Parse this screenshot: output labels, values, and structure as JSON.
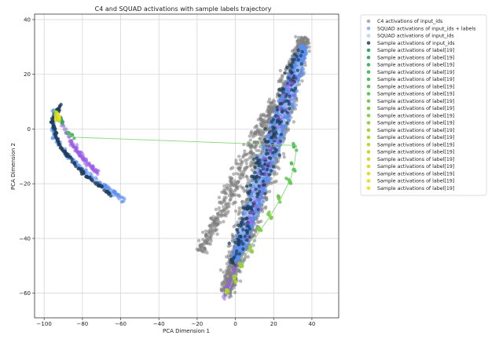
{
  "chart_data": {
    "type": "scatter",
    "title": "C4 and SQUAD activations with sample labels trajectory",
    "xlabel": "PCA Dimension 1",
    "ylabel": "PCA Dimension 2",
    "xlim": [
      -105,
      54
    ],
    "ylim": [
      -69,
      42
    ],
    "xticks": [
      -100,
      -80,
      -60,
      -40,
      -20,
      0,
      20,
      40
    ],
    "yticks": [
      -60,
      -40,
      -20,
      0,
      20,
      40
    ],
    "grid": true,
    "legend_position": "outside-right",
    "series": [
      {
        "name": "C4 activations of input_ids",
        "color": "#808080",
        "opacity": 0.55,
        "clusters": [
          {
            "shape": "band",
            "from": [
              -5,
              -60
            ],
            "to": [
              36,
              33
            ],
            "halfwidth": 9,
            "count": 1800,
            "seed": 11
          },
          {
            "shape": "band",
            "from": [
              -18,
              -45
            ],
            "to": [
              20,
              10
            ],
            "halfwidth": 6,
            "count": 400,
            "seed": 12
          }
        ]
      },
      {
        "name": "SQUAD activations of input_ids + labels",
        "color": "#5b8ff0",
        "opacity": 0.55,
        "clusters": [
          {
            "shape": "band",
            "from": [
              0,
              -48
            ],
            "to": [
              36,
              30
            ],
            "halfwidth": 6,
            "count": 1600,
            "seed": 21
          },
          {
            "shape": "curve",
            "points": [
              [
                -95,
                7
              ],
              [
                -95,
                -3
              ],
              [
                -85,
                -12
              ],
              [
                -70,
                -20
              ],
              [
                -58,
                -26
              ]
            ],
            "halfwidth": 1.5,
            "count": 160,
            "seed": 22
          }
        ]
      },
      {
        "name": "SQUAD activations of input_ids",
        "color": "#a5c3f2",
        "opacity": 0.6,
        "clusters": [
          {
            "shape": "band",
            "from": [
              2,
              -40
            ],
            "to": [
              34,
              24
            ],
            "halfwidth": 4,
            "count": 250,
            "seed": 31
          }
        ]
      },
      {
        "name": "Sample activations of input_ids",
        "color": "#1f3f5f",
        "opacity": 0.75,
        "clusters": [
          {
            "shape": "band",
            "from": [
              -2,
              -50
            ],
            "to": [
              34,
              28
            ],
            "halfwidth": 7,
            "count": 230,
            "seed": 41
          },
          {
            "shape": "curve",
            "points": [
              [
                -91,
                9
              ],
              [
                -96,
                3
              ],
              [
                -92,
                -6
              ],
              [
                -80,
                -16
              ],
              [
                -65,
                -24
              ]
            ],
            "halfwidth": 0.9,
            "count": 130,
            "seed": 42
          }
        ]
      },
      {
        "name": "Sample activations of label[19]",
        "color": "#2e9c6a",
        "opacity": 0.85,
        "clusters": [
          {
            "shape": "curve",
            "points": [
              [
                -93,
                6
              ],
              [
                -94,
                4
              ]
            ],
            "halfwidth": 0.6,
            "count": 6,
            "seed": 51
          }
        ]
      },
      {
        "name": "Sample activations of label[19]",
        "color": "#35a866",
        "opacity": 0.85,
        "clusters": [
          {
            "shape": "curve",
            "points": [
              [
                -92,
                5
              ],
              [
                -90,
                2
              ]
            ],
            "halfwidth": 0.6,
            "count": 6,
            "seed": 52
          }
        ]
      },
      {
        "name": "Sample activations of label[19]",
        "color": "#3cb062",
        "opacity": 0.85,
        "clusters": [
          {
            "shape": "curve",
            "points": [
              [
                -88,
                -1
              ],
              [
                -86,
                -2
              ]
            ],
            "halfwidth": 0.6,
            "count": 5,
            "seed": 53
          }
        ]
      },
      {
        "name": "Sample activations of label[19]",
        "color": "#44b65e",
        "opacity": 0.85,
        "clusters": [
          {
            "shape": "curve",
            "points": [
              [
                -86,
                -2
              ],
              [
                -84,
                -3
              ]
            ],
            "halfwidth": 0.6,
            "count": 5,
            "seed": 54
          }
        ]
      },
      {
        "name": "Sample activations of label[19]",
        "color": "#4dbb5a",
        "opacity": 0.85,
        "clusters": [
          {
            "shape": "curve",
            "points": [
              [
                30,
                -5
              ],
              [
                32,
                -8
              ]
            ],
            "halfwidth": 0.8,
            "count": 6,
            "seed": 55
          }
        ]
      },
      {
        "name": "Sample activations of label[19]",
        "color": "#56bf56",
        "opacity": 0.85,
        "clusters": [
          {
            "shape": "curve",
            "points": [
              [
                29,
                -12
              ],
              [
                31,
                -15
              ]
            ],
            "halfwidth": 0.8,
            "count": 6,
            "seed": 56
          }
        ]
      },
      {
        "name": "Sample activations of label[19]",
        "color": "#60c350",
        "opacity": 0.85,
        "clusters": [
          {
            "shape": "curve",
            "points": [
              [
                27,
                -18
              ],
              [
                29,
                -20
              ]
            ],
            "halfwidth": 0.8,
            "count": 5,
            "seed": 57
          }
        ]
      },
      {
        "name": "Sample activations of label[19]",
        "color": "#6bc74a",
        "opacity": 0.85,
        "clusters": [
          {
            "shape": "curve",
            "points": [
              [
                22,
                -24
              ],
              [
                24,
                -27
              ]
            ],
            "halfwidth": 0.8,
            "count": 5,
            "seed": 58
          }
        ]
      },
      {
        "name": "Sample activations of label[19]",
        "color": "#77ca44",
        "opacity": 0.85,
        "clusters": [
          {
            "shape": "curve",
            "points": [
              [
                17,
                -30
              ],
              [
                19,
                -33
              ]
            ],
            "halfwidth": 0.8,
            "count": 5,
            "seed": 59
          }
        ]
      },
      {
        "name": "Sample activations of label[19]",
        "color": "#83cd3d",
        "opacity": 0.85,
        "clusters": [
          {
            "shape": "curve",
            "points": [
              [
                12,
                -36
              ],
              [
                14,
                -38
              ]
            ],
            "halfwidth": 0.8,
            "count": 5,
            "seed": 60
          }
        ]
      },
      {
        "name": "Sample activations of label[19]",
        "color": "#90d036",
        "opacity": 0.85,
        "clusters": [
          {
            "shape": "curve",
            "points": [
              [
                7,
                -42
              ],
              [
                9,
                -45
              ]
            ],
            "halfwidth": 0.8,
            "count": 5,
            "seed": 61
          }
        ]
      },
      {
        "name": "Sample activations of label[19]",
        "color": "#9dd230",
        "opacity": 0.85,
        "clusters": [
          {
            "shape": "curve",
            "points": [
              [
                2,
                -49
              ],
              [
                4,
                -51
              ]
            ],
            "halfwidth": 0.8,
            "count": 5,
            "seed": 62
          }
        ]
      },
      {
        "name": "Sample activations of label[19]",
        "color": "#a9d42a",
        "opacity": 0.85,
        "clusters": [
          {
            "shape": "curve",
            "points": [
              [
                -1,
                -53
              ],
              [
                0,
                -56
              ]
            ],
            "halfwidth": 0.8,
            "count": 5,
            "seed": 63
          }
        ]
      },
      {
        "name": "Sample activations of label[19]",
        "color": "#b5d626",
        "opacity": 0.85,
        "clusters": [
          {
            "shape": "curve",
            "points": [
              [
                -4,
                -58
              ],
              [
                -5,
                -61
              ]
            ],
            "halfwidth": 0.8,
            "count": 5,
            "seed": 64
          }
        ]
      },
      {
        "name": "Sample activations of label[19]",
        "color": "#c1d822",
        "opacity": 0.85,
        "clusters": [
          {
            "shape": "curve",
            "points": [
              [
                -94,
                6
              ],
              [
                -93,
                4
              ]
            ],
            "halfwidth": 0.6,
            "count": 5,
            "seed": 65
          }
        ]
      },
      {
        "name": "Sample activations of label[19]",
        "color": "#ccda20",
        "opacity": 0.85,
        "clusters": [
          {
            "shape": "curve",
            "points": [
              [
                -93,
                5
              ],
              [
                -92,
                3
              ]
            ],
            "halfwidth": 0.6,
            "count": 5,
            "seed": 66
          }
        ]
      },
      {
        "name": "Sample activations of label[19]",
        "color": "#d6db1e",
        "opacity": 0.85,
        "clusters": [
          {
            "shape": "curve",
            "points": [
              [
                -94,
                5
              ],
              [
                -93,
                3
              ]
            ],
            "halfwidth": 0.6,
            "count": 5,
            "seed": 67
          }
        ]
      },
      {
        "name": "Sample activations of label[19]",
        "color": "#e0dc1c",
        "opacity": 0.85,
        "clusters": [
          {
            "shape": "curve",
            "points": [
              [
                -93,
                6
              ],
              [
                -92,
                4
              ]
            ],
            "halfwidth": 0.6,
            "count": 5,
            "seed": 68
          }
        ]
      },
      {
        "name": "Sample activations of label[19]",
        "color": "#e9dc1c",
        "opacity": 0.85,
        "clusters": [
          {
            "shape": "curve",
            "points": [
              [
                -94,
                4
              ],
              [
                -93,
                3
              ]
            ],
            "halfwidth": 0.6,
            "count": 5,
            "seed": 69
          }
        ]
      },
      {
        "name": "Sample activations of label[19]",
        "color": "#f2dc1e",
        "opacity": 0.85,
        "clusters": [
          {
            "shape": "curve",
            "points": [
              [
                -93,
                5
              ],
              [
                -92,
                4
              ]
            ],
            "halfwidth": 0.6,
            "count": 5,
            "seed": 70
          }
        ]
      }
    ],
    "extra_clusters": [
      {
        "color": "#9b5de5",
        "opacity": 0.55,
        "shape": "curve",
        "points": [
          [
            -92,
            4
          ],
          [
            -85,
            -6
          ],
          [
            -78,
            -12
          ],
          [
            -72,
            -16
          ]
        ],
        "halfwidth": 1.6,
        "count": 110,
        "seed": 81
      },
      {
        "color": "#9b5de5",
        "opacity": 0.55,
        "shape": "band",
        "from": [
          -6,
          -62
        ],
        "to": [
          2,
          -48
        ],
        "halfwidth": 2,
        "count": 35,
        "seed": 82
      },
      {
        "color": "#9b5de5",
        "opacity": 0.5,
        "shape": "band",
        "from": [
          5,
          -40
        ],
        "to": [
          30,
          20
        ],
        "halfwidth": 6,
        "count": 60,
        "seed": 83
      }
    ],
    "trajectory": {
      "color": "#7ad36a",
      "points": [
        [
          -95,
          7
        ],
        [
          -94,
          5
        ],
        [
          -93,
          3
        ],
        [
          -90,
          1
        ],
        [
          -87,
          -2
        ],
        [
          -84,
          -3
        ],
        [
          32,
          -6
        ],
        [
          31,
          -12
        ],
        [
          29,
          -18
        ],
        [
          24,
          -25
        ],
        [
          18,
          -32
        ],
        [
          12,
          -38
        ],
        [
          7,
          -44
        ],
        [
          2,
          -50
        ],
        [
          -1,
          -55
        ],
        [
          -5,
          -61
        ]
      ]
    }
  }
}
